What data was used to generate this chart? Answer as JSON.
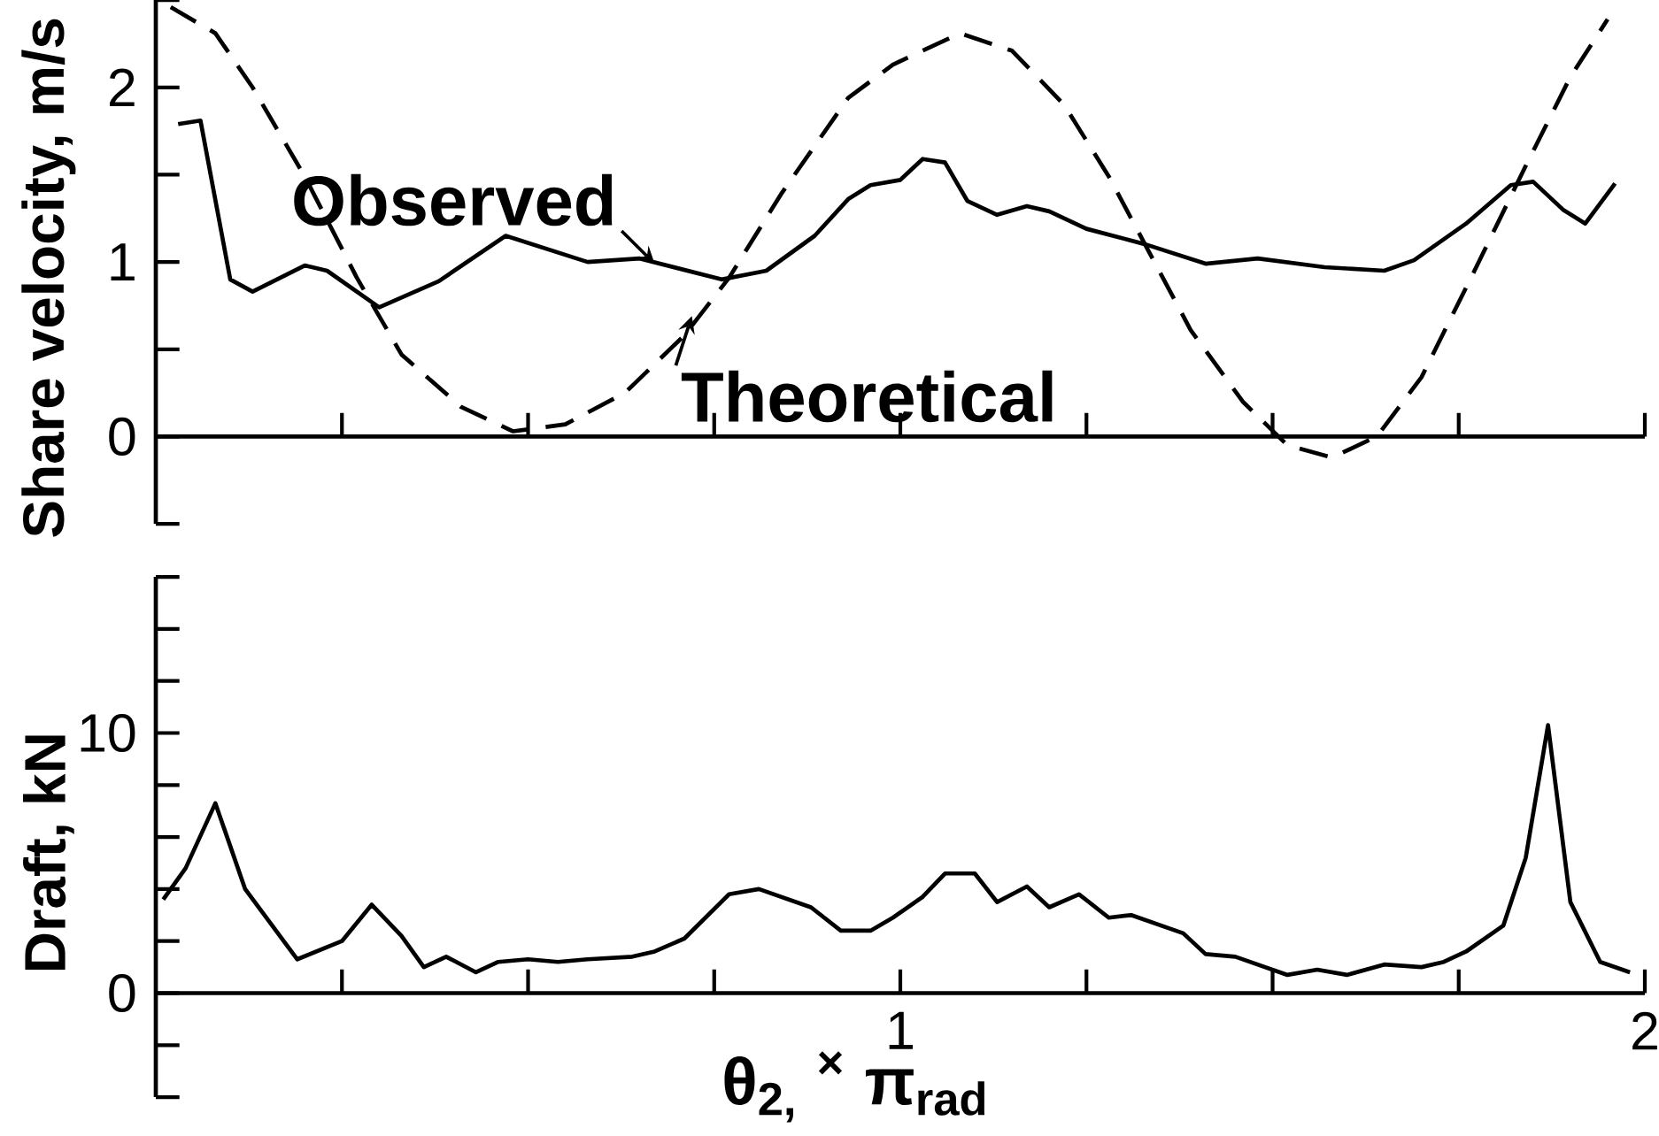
{
  "chart_data": [
    {
      "type": "line",
      "ylabel": "Share velocity, m/s",
      "xlim": [
        0,
        2
      ],
      "ylim": [
        -0.5,
        2.5
      ],
      "tick_labels": "y",
      "xticks": [
        {
          "value": 0,
          "label": null
        },
        {
          "value": 0.25,
          "label": null
        },
        {
          "value": 0.5,
          "label": null
        },
        {
          "value": 0.75,
          "label": null
        },
        {
          "value": 1,
          "label": null
        },
        {
          "value": 1.25,
          "label": null
        },
        {
          "value": 1.5,
          "label": null
        },
        {
          "value": 1.75,
          "label": null
        },
        {
          "value": 2,
          "label": null
        }
      ],
      "yticks": [
        {
          "value": -0.5,
          "label": null
        },
        0,
        {
          "value": 0.5,
          "label": null
        },
        1,
        {
          "value": 1.5,
          "label": null
        },
        2,
        {
          "value": 2.5,
          "label": null
        }
      ],
      "annotations": [
        {
          "text": "Observed",
          "x": 0.67,
          "y": 0.99
        },
        {
          "text": "Theoretical",
          "x": 0.72,
          "y": 0.69
        }
      ],
      "series": [
        {
          "color": "#000000",
          "line_style": "solid",
          "x": [
            0.03,
            0.06,
            0.1,
            0.13,
            0.2,
            0.23,
            0.3,
            0.38,
            0.47,
            0.58,
            0.65,
            0.76,
            0.82,
            0.885,
            0.93,
            0.96,
            1.0,
            1.03,
            1.06,
            1.09,
            1.13,
            1.17,
            1.2,
            1.25,
            1.33,
            1.41,
            1.48,
            1.57,
            1.65,
            1.69,
            1.76,
            1.82,
            1.85,
            1.89,
            1.92,
            1.96
          ],
          "values": [
            1.79,
            1.81,
            0.9,
            0.83,
            0.98,
            0.95,
            0.74,
            0.89,
            1.15,
            1.0,
            1.02,
            0.9,
            0.95,
            1.15,
            1.36,
            1.44,
            1.47,
            1.59,
            1.57,
            1.35,
            1.27,
            1.32,
            1.29,
            1.19,
            1.1,
            0.99,
            1.02,
            0.97,
            0.95,
            1.01,
            1.22,
            1.44,
            1.46,
            1.3,
            1.22,
            1.45
          ]
        },
        {
          "color": "#000000",
          "line_style": "dashed",
          "x": [
            0.02,
            0.08,
            0.13,
            0.2,
            0.27,
            0.33,
            0.41,
            0.48,
            0.55,
            0.63,
            0.71,
            0.77,
            0.84,
            0.93,
            0.99,
            1.08,
            1.15,
            1.22,
            1.28,
            1.33,
            1.39,
            1.46,
            1.52,
            1.58,
            1.64,
            1.7,
            1.77,
            1.84,
            1.9,
            1.95
          ],
          "values": [
            2.46,
            2.31,
            2.0,
            1.49,
            0.91,
            0.47,
            0.17,
            0.03,
            0.07,
            0.25,
            0.58,
            0.91,
            1.39,
            1.94,
            2.13,
            2.31,
            2.21,
            1.9,
            1.49,
            1.09,
            0.61,
            0.2,
            -0.05,
            -0.12,
            0.0,
            0.34,
            0.94,
            1.55,
            2.06,
            2.39
          ]
        }
      ]
    },
    {
      "type": "line",
      "ylabel": "Draft, kN",
      "xlabel": "θ$_{2,}$ $^{×}$ π$_{rad}$",
      "xlim": [
        0,
        2
      ],
      "ylim": [
        -4,
        16
      ],
      "xticks": [
        {
          "value": 0,
          "label": null
        },
        {
          "value": 0.25,
          "label": null
        },
        {
          "value": 0.5,
          "label": null
        },
        {
          "value": 0.75,
          "label": null
        },
        1,
        {
          "value": 1.25,
          "label": null
        },
        {
          "value": 1.5,
          "label": null
        },
        {
          "value": 1.75,
          "label": null
        },
        2
      ],
      "yticks": [
        {
          "value": -4,
          "label": null
        },
        {
          "value": -2,
          "label": null
        },
        0,
        {
          "value": 2,
          "label": null
        },
        {
          "value": 4,
          "label": null
        },
        {
          "value": 6,
          "label": null
        },
        {
          "value": 8,
          "label": null
        },
        10,
        {
          "value": 12,
          "label": null
        },
        {
          "value": 14,
          "label": null
        },
        {
          "value": 16,
          "label": null
        }
      ],
      "series": [
        {
          "color": "#000000",
          "line_style": "solid",
          "x": [
            0.01,
            0.04,
            0.08,
            0.12,
            0.19,
            0.25,
            0.29,
            0.33,
            0.36,
            0.39,
            0.43,
            0.46,
            0.5,
            0.54,
            0.58,
            0.64,
            0.67,
            0.71,
            0.77,
            0.81,
            0.88,
            0.92,
            0.96,
            0.99,
            1.03,
            1.06,
            1.1,
            1.13,
            1.17,
            1.2,
            1.24,
            1.28,
            1.31,
            1.38,
            1.41,
            1.45,
            1.52,
            1.56,
            1.6,
            1.65,
            1.7,
            1.73,
            1.76,
            1.81,
            1.84,
            1.87,
            1.9,
            1.94,
            1.98
          ],
          "values": [
            3.6,
            4.8,
            7.3,
            4.0,
            1.3,
            2.0,
            3.4,
            2.2,
            1.0,
            1.4,
            0.8,
            1.2,
            1.3,
            1.2,
            1.3,
            1.4,
            1.6,
            2.1,
            3.8,
            4.0,
            3.3,
            2.4,
            2.4,
            2.9,
            3.7,
            4.6,
            4.6,
            3.5,
            4.1,
            3.3,
            3.8,
            2.9,
            3.0,
            2.3,
            1.5,
            1.4,
            0.7,
            0.9,
            0.7,
            1.1,
            1.0,
            1.2,
            1.6,
            2.6,
            5.2,
            10.3,
            3.5,
            1.2,
            0.8
          ]
        }
      ]
    }
  ]
}
